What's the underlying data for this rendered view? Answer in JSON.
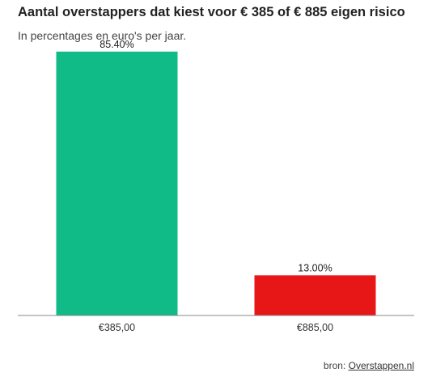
{
  "title": "Aantal overstappers dat kiest voor € 385 of € 885 eigen risico",
  "subtitle": "In percentages en euro's per jaar.",
  "source": {
    "prefix": "bron: ",
    "link_text": "Overstappen.nl"
  },
  "chart_data": {
    "type": "bar",
    "categories": [
      "€385,00",
      "€885,00"
    ],
    "values": [
      85.4,
      13.0
    ],
    "value_labels": [
      "85.40%",
      "13.00%"
    ],
    "colors": [
      "#10bb88",
      "#e81717"
    ],
    "ylim": [
      0,
      100
    ],
    "grid": false,
    "legend": "none"
  }
}
